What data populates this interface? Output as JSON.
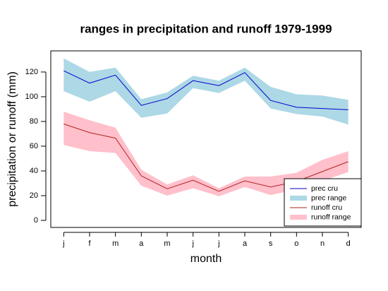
{
  "chart_data": {
    "type": "line",
    "title": "ranges in precipitation and runoff 1979-1999",
    "x_label": "month",
    "y_label": "precipitation or runoff (mm)",
    "categories": [
      "j",
      "f",
      "m",
      "a",
      "m",
      "j",
      "j",
      "a",
      "s",
      "o",
      "n",
      "d"
    ],
    "ylim": [
      -5.7,
      137.1
    ],
    "yticks": [
      0,
      20,
      40,
      60,
      80,
      100,
      120
    ],
    "legend": "bottom-right",
    "series": [
      {
        "name": "prec cru",
        "color": "#0000cd",
        "values": [
          121,
          111,
          117.5,
          93,
          98.5,
          113,
          109,
          119.5,
          97,
          91.5,
          90.5,
          89.5
        ]
      },
      {
        "name": "prec range",
        "color": "#add8e6",
        "upper": [
          131,
          120,
          123.5,
          98,
          103.5,
          117,
          113,
          123.5,
          108,
          102,
          101,
          97.5
        ],
        "lower": [
          104.5,
          96,
          104.5,
          83,
          86.5,
          107,
          103,
          113,
          90.5,
          86,
          84,
          77.5
        ]
      },
      {
        "name": "runoff cru",
        "color": "#b22222",
        "values": [
          78,
          71,
          66.5,
          36,
          25.5,
          32.5,
          23.5,
          32,
          27,
          31.5,
          39.5,
          47.5
        ]
      },
      {
        "name": "runoff range",
        "color": "#ffc0cb",
        "upper": [
          88,
          81,
          75,
          41,
          29,
          36.5,
          26,
          35.5,
          35.5,
          38.5,
          49,
          56
        ],
        "lower": [
          61,
          56,
          54.5,
          28,
          20,
          26,
          19.5,
          27,
          20.5,
          25,
          32,
          39
        ]
      }
    ]
  }
}
